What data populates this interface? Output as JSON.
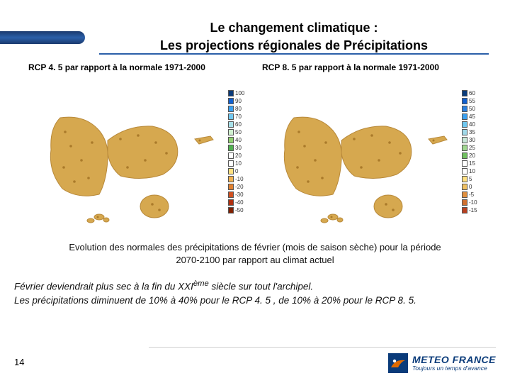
{
  "title": {
    "line1": "Le changement climatique :",
    "line2": "Les projections régionales de Précipitations"
  },
  "maps": {
    "left": {
      "label": "RCP 4. 5 par rapport à la normale 1971-2000"
    },
    "right": {
      "label": "RCP 8. 5 par rapport à la normale 1971-2000"
    }
  },
  "island": {
    "fill": "#d6a84f",
    "stroke": "#b8893a",
    "sea": "#ffffff",
    "frame": "#ffffff",
    "point_fill": "#aa7a2a"
  },
  "legend_left": {
    "ticks": [
      "100",
      "90",
      "80",
      "70",
      "60",
      "50",
      "40",
      "30",
      "20",
      "10",
      "0",
      "-10",
      "-20",
      "-30",
      "-40",
      "-50"
    ],
    "colors": [
      "#0a3b7a",
      "#1060d0",
      "#3aa0f0",
      "#70c8f0",
      "#a8e0e8",
      "#d0f0d0",
      "#90d070",
      "#50b050",
      "#ffffff",
      "#ffffff",
      "#ffe080",
      "#f0b050",
      "#e08030",
      "#d05020",
      "#b03010",
      "#802000"
    ]
  },
  "legend_right": {
    "ticks": [
      "60",
      "55",
      "50",
      "45",
      "40",
      "35",
      "30",
      "25",
      "20",
      "15",
      "10",
      "5",
      "0",
      "-5",
      "-10",
      "-15"
    ],
    "colors": [
      "#0a3b7a",
      "#1060d0",
      "#2a80e0",
      "#3aa0f0",
      "#70c8f0",
      "#a0d8e8",
      "#c8e8d8",
      "#a0d890",
      "#70c060",
      "#ffffff",
      "#ffffff",
      "#ffe080",
      "#f0c060",
      "#e09040",
      "#d07030",
      "#b84020"
    ]
  },
  "caption": {
    "line1": "Evolution des normales des précipitations de février (mois de saison sèche) pour la période",
    "line2": "2070-2100 par rapport au climat actuel"
  },
  "body": {
    "line1_a": "Février deviendrait plus sec à la fin du XXI",
    "line1_sup": "ème",
    "line1_b": " siècle  sur tout l'archipel.",
    "line2": "Les précipitations diminuent de 10% à 40% pour le RCP 4. 5 , de 10% à 20% pour le RCP 8. 5."
  },
  "page": "14",
  "logo": {
    "main": "METEO FRANCE",
    "sub": "Toujours un temps d'avance",
    "square": "#0a3b7a",
    "accent": "#e06a00"
  }
}
